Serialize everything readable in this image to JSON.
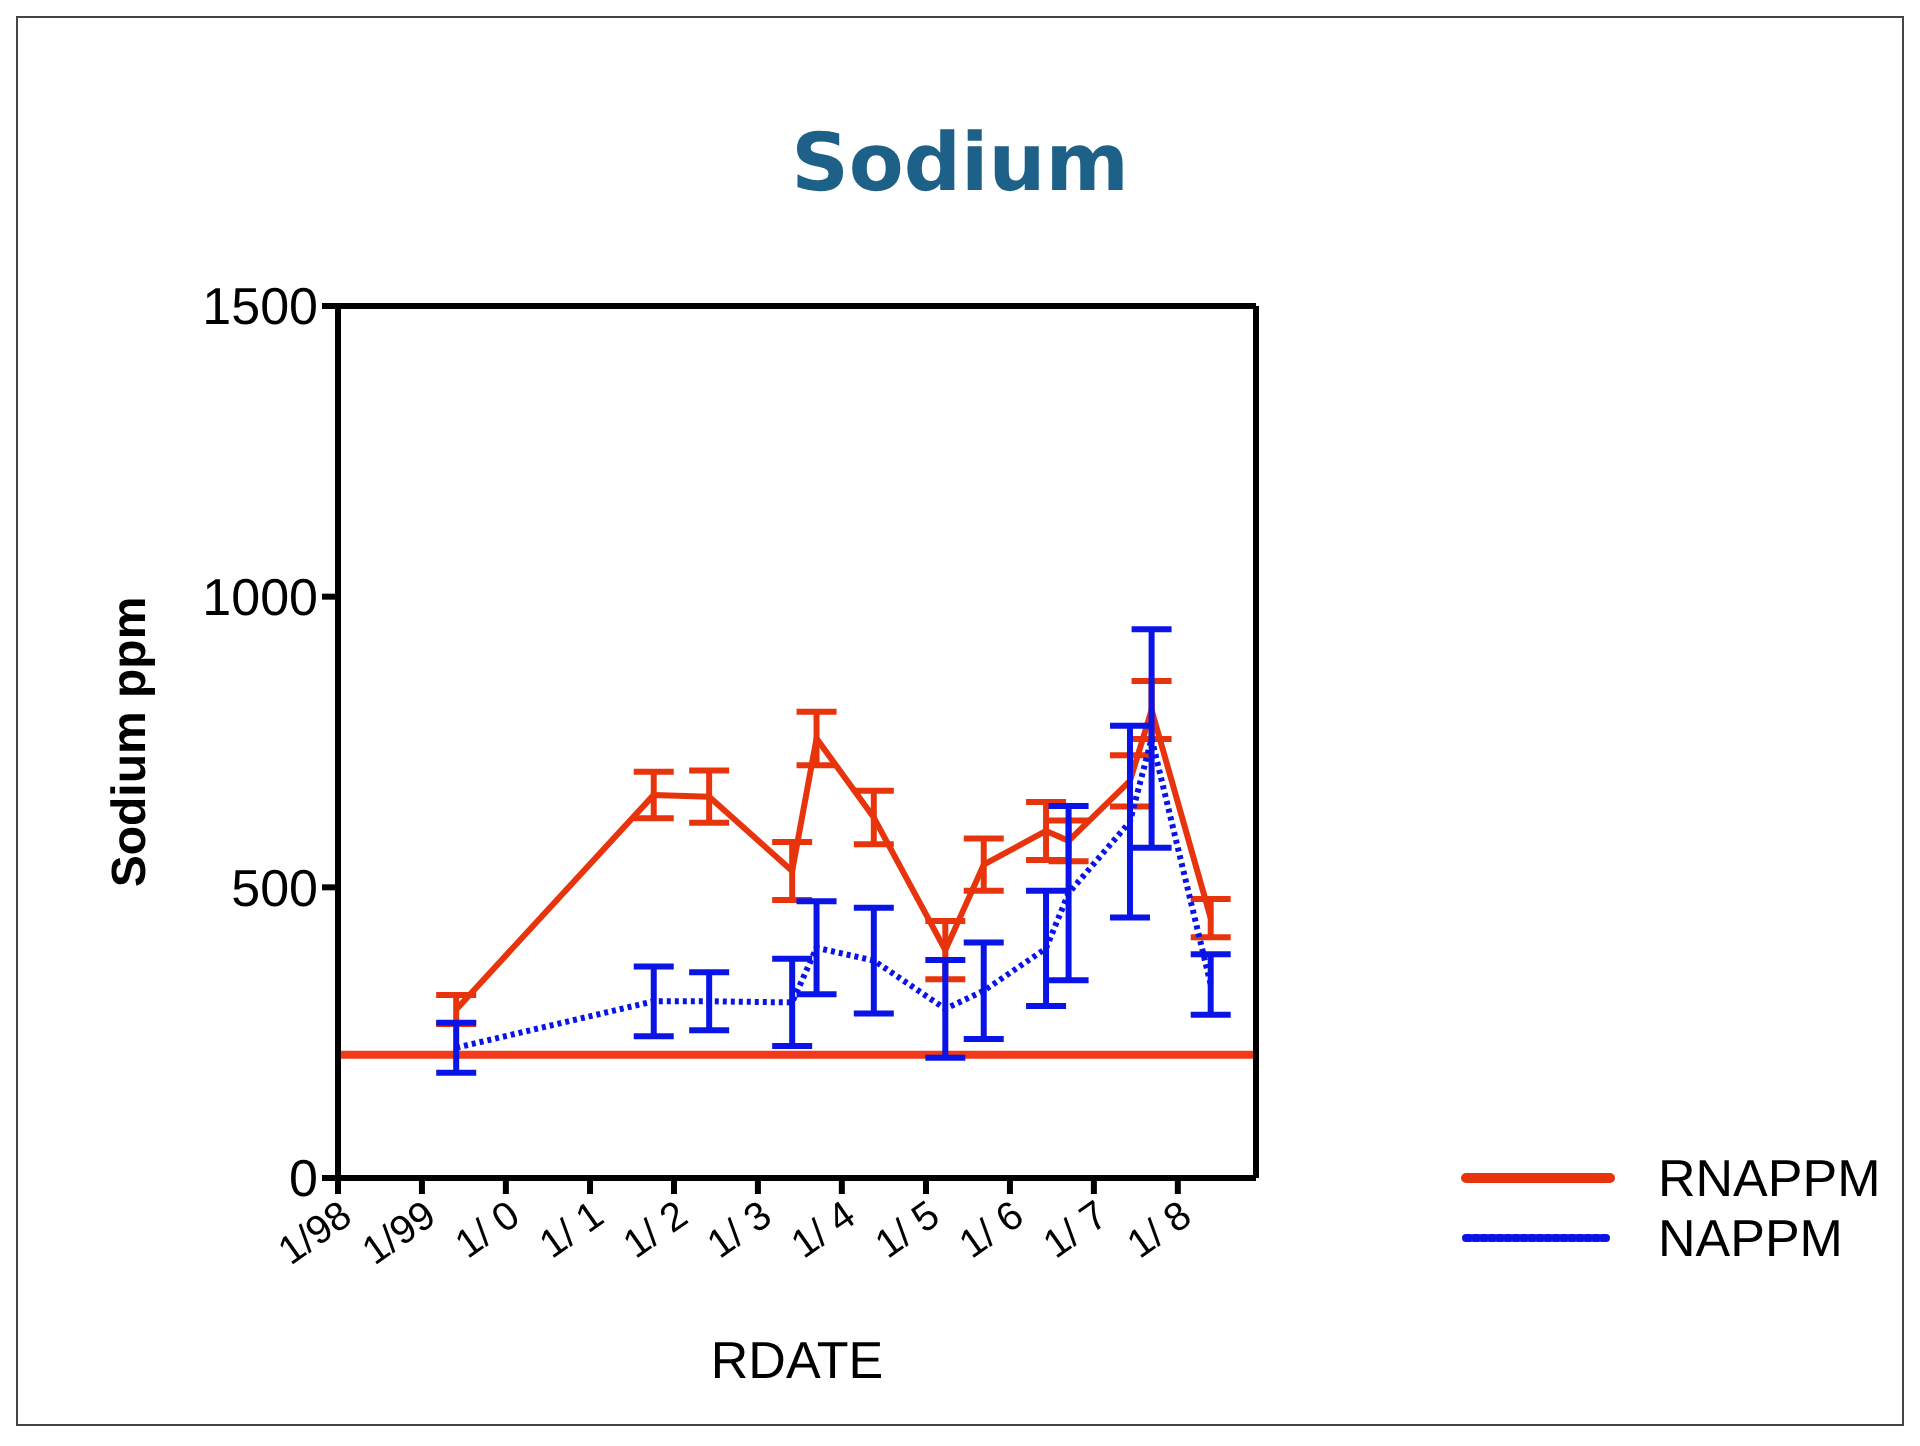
{
  "chart_data": {
    "type": "line",
    "title": "Sodium",
    "xlabel": "RDATE",
    "ylabel": "Sodium ppm",
    "x": [
      "1999-05-30",
      "2001-10-05",
      "2002-06-03",
      "2003-05-30",
      "2003-09-13",
      "2004-05-19",
      "2005-03-26",
      "2005-09-09",
      "2006-06-07",
      "2006-09-13",
      "2007-06-07",
      "2007-09-09",
      "2008-05-23"
    ],
    "series": [
      {
        "name": "RNAPPM",
        "color": "#e8340c",
        "line_style": "solid",
        "values": [
          290,
          659,
          656,
          528,
          756,
          620,
          392,
          539,
          597,
          580,
          683,
          805,
          447
        ],
        "errors": [
          25,
          40,
          45,
          50,
          46,
          46,
          50,
          45,
          50,
          35,
          44,
          50,
          33
        ]
      },
      {
        "name": "NAPPM",
        "color": "#0a14e6",
        "line_style": "dotted",
        "values": [
          224,
          304,
          304,
          302,
          396,
          374,
          291,
          322,
          395,
          490,
          613,
          756,
          333
        ],
        "errors": [
          43,
          60,
          50,
          75,
          80,
          91,
          84,
          83,
          99,
          150,
          165,
          188,
          52
        ]
      }
    ],
    "xlim": [
      "1998-01-01",
      "2008-12-06"
    ],
    "xticks": [
      {
        "value": "1998-01-01",
        "label": "1/98"
      },
      {
        "value": "1999-01-01",
        "label": "1/99"
      },
      {
        "value": "2000-01-01",
        "label": "1/ 0"
      },
      {
        "value": "2001-01-01",
        "label": "1/ 1"
      },
      {
        "value": "2002-01-01",
        "label": "1/ 2"
      },
      {
        "value": "2003-01-01",
        "label": "1/ 3"
      },
      {
        "value": "2004-01-01",
        "label": "1/ 4"
      },
      {
        "value": "2005-01-01",
        "label": "1/ 5"
      },
      {
        "value": "2006-01-01",
        "label": "1/ 6"
      },
      {
        "value": "2007-01-01",
        "label": "1/ 7"
      },
      {
        "value": "2008-01-01",
        "label": "1/ 8"
      }
    ],
    "ylim": [
      0,
      1500
    ],
    "yticks": [
      0,
      500,
      1000,
      1500
    ],
    "ref_lines": [
      {
        "axis": "y",
        "value": 212,
        "color": "#f03a1a"
      }
    ],
    "grid": false,
    "legend": "bottom right",
    "marker": "none"
  }
}
